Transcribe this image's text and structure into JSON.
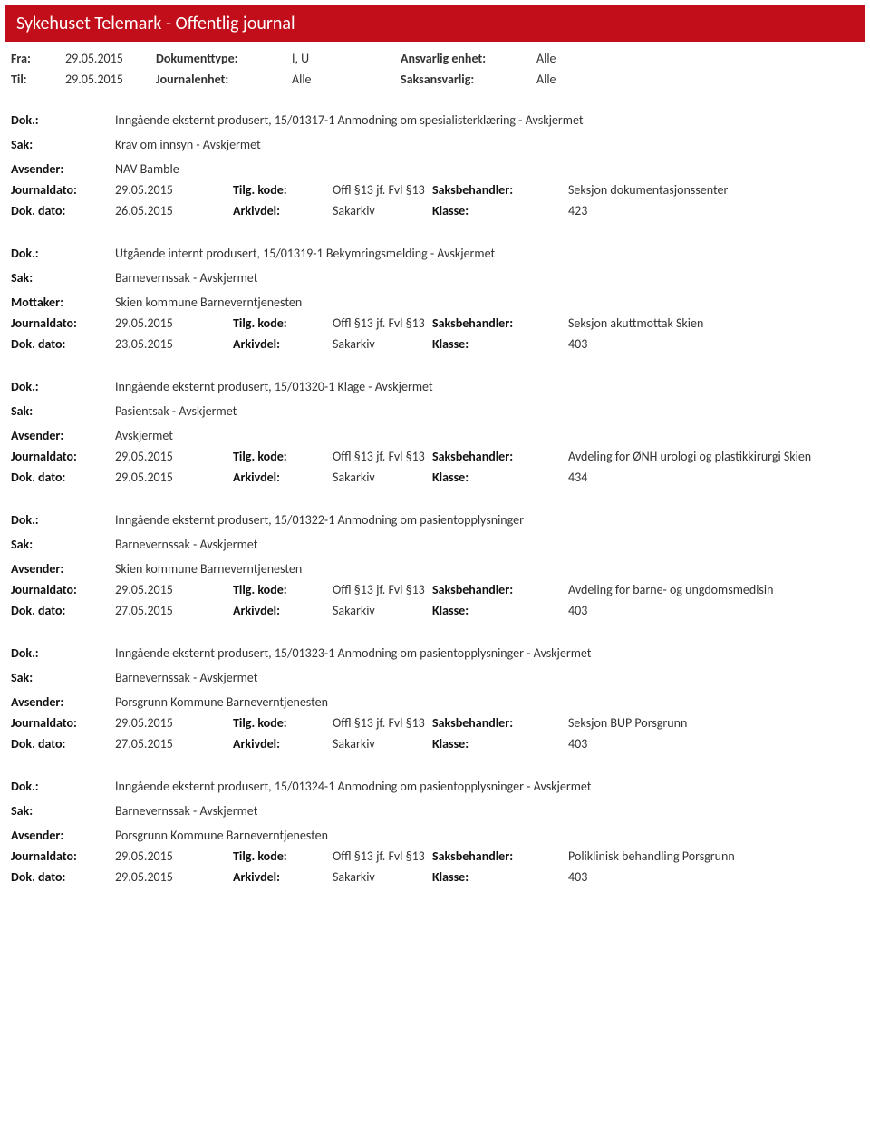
{
  "header": {
    "title": "Sykehuset Telemark - Offentlig journal"
  },
  "meta": {
    "fra_label": "Fra:",
    "fra_value": "29.05.2015",
    "til_label": "Til:",
    "til_value": "29.05.2015",
    "doktype_label": "Dokumenttype:",
    "doktype_value": "I, U",
    "journalenhet_label": "Journalenhet:",
    "journalenhet_value": "Alle",
    "ansvarlig_label": "Ansvarlig enhet:",
    "ansvarlig_value": "Alle",
    "saksansvarlig_label": "Saksansvarlig:",
    "saksansvarlig_value": "Alle"
  },
  "labels": {
    "dok": "Dok.:",
    "sak": "Sak:",
    "avsender": "Avsender:",
    "mottaker": "Mottaker:",
    "journaldato": "Journaldato:",
    "dokdato": "Dok. dato:",
    "tilgkode": "Tilg. kode:",
    "arkivdel": "Arkivdel:",
    "saksbehandler": "Saksbehandler:",
    "klasse": "Klasse:"
  },
  "entries": [
    {
      "dok": "Inngående eksternt produsert, 15/01317-1 Anmodning om spesialisterklæring - Avskjermet",
      "sak": "Krav om innsyn - Avskjermet",
      "party_label": "Avsender:",
      "party": "NAV Bamble",
      "journaldato": "29.05.2015",
      "tilgkode": "Offl §13 jf. Fvl §13",
      "saksbehandler": "Seksjon dokumentasjonssenter",
      "dokdato": "26.05.2015",
      "arkivdel": "Sakarkiv",
      "klasse": "423"
    },
    {
      "dok": "Utgående internt produsert, 15/01319-1 Bekymringsmelding - Avskjermet",
      "sak": "Barnevernssak - Avskjermet",
      "party_label": "Mottaker:",
      "party": "Skien kommune Barneverntjenesten",
      "journaldato": "29.05.2015",
      "tilgkode": "Offl §13 jf. Fvl §13",
      "saksbehandler": "Seksjon akuttmottak Skien",
      "dokdato": "23.05.2015",
      "arkivdel": "Sakarkiv",
      "klasse": "403"
    },
    {
      "dok": "Inngående eksternt produsert, 15/01320-1 Klage - Avskjermet",
      "sak": "Pasientsak - Avskjermet",
      "party_label": "Avsender:",
      "party": "Avskjermet",
      "journaldato": "29.05.2015",
      "tilgkode": "Offl §13 jf. Fvl §13",
      "saksbehandler": "Avdeling for ØNH urologi og plastikkirurgi Skien",
      "dokdato": "29.05.2015",
      "arkivdel": "Sakarkiv",
      "klasse": "434"
    },
    {
      "dok": "Inngående eksternt produsert, 15/01322-1 Anmodning om pasientopplysninger",
      "sak": "Barnevernssak - Avskjermet",
      "party_label": "Avsender:",
      "party": "Skien kommune Barneverntjenesten",
      "journaldato": "29.05.2015",
      "tilgkode": "Offl §13 jf. Fvl §13",
      "saksbehandler": "Avdeling for barne- og ungdomsmedisin",
      "dokdato": "27.05.2015",
      "arkivdel": "Sakarkiv",
      "klasse": "403"
    },
    {
      "dok": "Inngående eksternt produsert, 15/01323-1 Anmodning om pasientopplysninger - Avskjermet",
      "sak": "Barnevernssak - Avskjermet",
      "party_label": "Avsender:",
      "party": "Porsgrunn Kommune Barneverntjenesten",
      "journaldato": "29.05.2015",
      "tilgkode": "Offl §13 jf. Fvl §13",
      "saksbehandler": "Seksjon BUP Porsgrunn",
      "dokdato": "27.05.2015",
      "arkivdel": "Sakarkiv",
      "klasse": "403"
    },
    {
      "dok": "Inngående eksternt produsert, 15/01324-1 Anmodning om pasientopplysninger - Avskjermet",
      "sak": "Barnevernssak - Avskjermet",
      "party_label": "Avsender:",
      "party": "Porsgrunn Kommune Barneverntjenesten",
      "journaldato": "29.05.2015",
      "tilgkode": "Offl §13 jf. Fvl §13",
      "saksbehandler": "Poliklinisk behandling Porsgrunn",
      "dokdato": "29.05.2015",
      "arkivdel": "Sakarkiv",
      "klasse": "403"
    }
  ]
}
